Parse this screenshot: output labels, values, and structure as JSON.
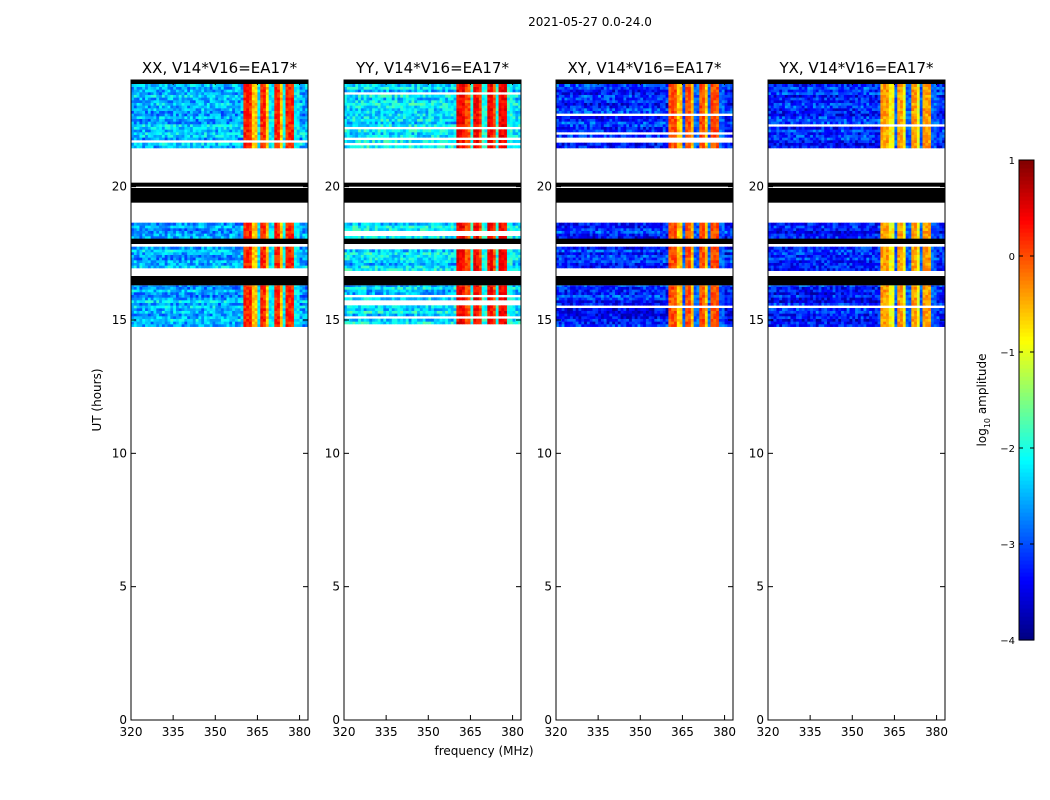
{
  "chart_data": {
    "type": "heatmap",
    "suptitle": "2021-05-27 0.0-24.0",
    "xlabel": "frequency (MHz)",
    "ylabel": "UT (hours)",
    "xlim": [
      320,
      383
    ],
    "ylim": [
      0,
      24
    ],
    "xticks": [
      "320",
      "335",
      "350",
      "365",
      "380"
    ],
    "yticks": [
      "0",
      "5",
      "10",
      "15",
      "20"
    ],
    "colorscale": "jet",
    "colorbar": {
      "label": "log10 amplitude",
      "label_main": "log",
      "label_sub": "10",
      "label_rest": " amplitude",
      "range": [
        -4,
        1
      ],
      "ticks": [
        "−4",
        "−3",
        "−2",
        "−1",
        "0",
        "1"
      ]
    },
    "data_time_blocks_hours": [
      {
        "start": 14.75,
        "end": 15.75
      },
      {
        "start": 15.75,
        "end": 16.3
      },
      {
        "start": 16.85,
        "end": 17.75
      },
      {
        "start": 18.05,
        "end": 18.65
      },
      {
        "start": 21.45,
        "end": 23.85
      }
    ],
    "flagged_time_bands_hours": [
      {
        "start": 16.3,
        "end": 16.65
      },
      {
        "start": 17.85,
        "end": 18.05
      },
      {
        "start": 19.4,
        "end": 19.95
      },
      {
        "start": 20.0,
        "end": 20.15
      },
      {
        "start": 23.85,
        "end": 24.0
      }
    ],
    "rfi_frequency_range_mhz": [
      360,
      380
    ],
    "panels": [
      {
        "title": "XX, V14*V16=EA17*",
        "background_log_amp": -2.5,
        "rfi_log_amp": -0.6,
        "rfi_peak_log_amp": 0.2
      },
      {
        "title": "YY, V14*V16=EA17*",
        "background_log_amp": -2.3,
        "rfi_log_amp": 0.0,
        "rfi_peak_log_amp": 0.4
      },
      {
        "title": "XY, V14*V16=EA17*",
        "background_log_amp": -3.2,
        "rfi_log_amp": -0.6,
        "rfi_peak_log_amp": 0.0
      },
      {
        "title": "YX, V14*V16=EA17*",
        "background_log_amp": -3.2,
        "rfi_log_amp": -0.9,
        "rfi_peak_log_amp": -0.4
      }
    ]
  }
}
